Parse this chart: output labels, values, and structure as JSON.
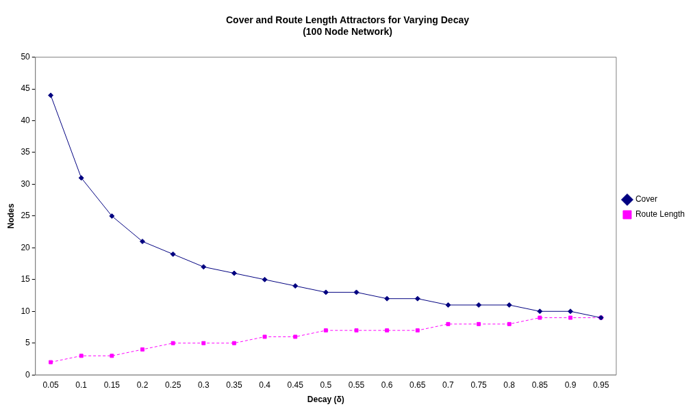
{
  "chart_data": {
    "type": "line",
    "title": "Cover and Route Length Attractors for Varying Decay\n(100 Node Network)",
    "xlabel": "Decay (δ)",
    "ylabel": "Nodes",
    "categories": [
      "0.05",
      "0.1",
      "0.15",
      "0.2",
      "0.25",
      "0.3",
      "0.35",
      "0.4",
      "0.45",
      "0.5",
      "0.55",
      "0.6",
      "0.65",
      "0.7",
      "0.75",
      "0.8",
      "0.85",
      "0.9",
      "0.95"
    ],
    "series": [
      {
        "name": "Cover",
        "color": "#000080",
        "marker": "diamond",
        "line_style": "solid",
        "values": [
          44,
          31,
          25,
          21,
          19,
          17,
          16,
          15,
          14,
          13,
          13,
          12,
          12,
          11,
          11,
          11,
          10,
          10,
          9
        ]
      },
      {
        "name": "Route Length",
        "color": "#ff00ff",
        "marker": "square",
        "line_style": "dashed",
        "values": [
          2,
          3,
          3,
          4,
          5,
          5,
          5,
          6,
          6,
          7,
          7,
          7,
          7,
          8,
          8,
          8,
          9,
          9,
          9
        ]
      }
    ],
    "ylim": [
      0,
      50
    ],
    "yticks": [
      0,
      5,
      10,
      15,
      20,
      25,
      30,
      35,
      40,
      45,
      50
    ],
    "grid": false,
    "legend": "right"
  }
}
